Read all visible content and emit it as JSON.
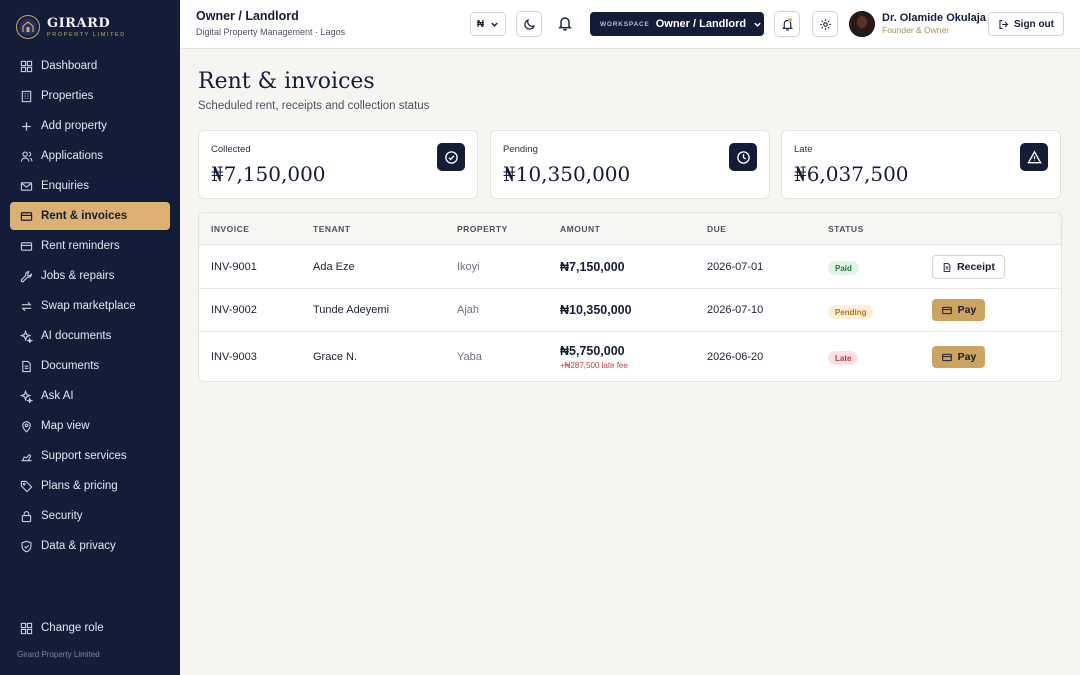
{
  "brand": {
    "name": "GIRARD",
    "tagline": "PROPERTY LIMITED"
  },
  "sidebar": {
    "items": [
      {
        "label": "Dashboard",
        "icon": "grid-icon"
      },
      {
        "label": "Properties",
        "icon": "building-icon"
      },
      {
        "label": "Add property",
        "icon": "plus-icon"
      },
      {
        "label": "Applications",
        "icon": "users-icon"
      },
      {
        "label": "Enquiries",
        "icon": "mail-icon"
      },
      {
        "label": "Rent & invoices",
        "icon": "card-icon",
        "active": true
      },
      {
        "label": "Rent reminders",
        "icon": "card-icon"
      },
      {
        "label": "Jobs & repairs",
        "icon": "wrench-icon"
      },
      {
        "label": "Swap marketplace",
        "icon": "swap-icon"
      },
      {
        "label": "AI documents",
        "icon": "sparkle-icon"
      },
      {
        "label": "Documents",
        "icon": "document-icon"
      },
      {
        "label": "Ask AI",
        "icon": "sparkle-icon"
      },
      {
        "label": "Map view",
        "icon": "map-pin-icon"
      },
      {
        "label": "Support services",
        "icon": "hand-icon"
      },
      {
        "label": "Plans & pricing",
        "icon": "tag-icon"
      },
      {
        "label": "Security",
        "icon": "lock-icon"
      },
      {
        "label": "Data & privacy",
        "icon": "shield-icon"
      }
    ],
    "change_role": "Change role",
    "footer": "Girard Property Limited"
  },
  "topbar": {
    "title": "Owner / Landlord",
    "subtitle": "Digital Property Management · Lagos",
    "currency": "₦",
    "workspace_label": "WORKSPACE",
    "workspace_value": "Owner / Landlord",
    "user_name": "Dr. Olamide Okulaja",
    "user_role": "Founder & Owner",
    "signout": "Sign out"
  },
  "page": {
    "title": "Rent & invoices",
    "subtitle": "Scheduled rent, receipts and collection status"
  },
  "summary": [
    {
      "label": "Collected",
      "value": "₦7,150,000",
      "icon": "check-circle-icon"
    },
    {
      "label": "Pending",
      "value": "₦10,350,000",
      "icon": "clock-icon"
    },
    {
      "label": "Late",
      "value": "₦6,037,500",
      "icon": "warning-icon"
    }
  ],
  "table": {
    "headers": [
      "INVOICE",
      "TENANT",
      "PROPERTY",
      "AMOUNT",
      "DUE",
      "STATUS"
    ],
    "rows": [
      {
        "invoice": "INV-9001",
        "tenant": "Ada Eze",
        "property": "Ikoyi",
        "amount": "₦7,150,000",
        "late_fee": "",
        "due": "2026-07-01",
        "status": "Paid",
        "action": "Receipt"
      },
      {
        "invoice": "INV-9002",
        "tenant": "Tunde Adeyemi",
        "property": "Ajah",
        "amount": "₦10,350,000",
        "late_fee": "",
        "due": "2026-07-10",
        "status": "Pending",
        "action": "Pay"
      },
      {
        "invoice": "INV-9003",
        "tenant": "Grace N.",
        "property": "Yaba",
        "amount": "₦5,750,000",
        "late_fee": "+₦287,500 late fee",
        "due": "2026-06-20",
        "status": "Late",
        "action": "Pay"
      }
    ]
  },
  "colors": {
    "navy": "#141d38",
    "gold": "#dcb273",
    "paid": "#1f7a3c",
    "pending": "#b3741b",
    "late": "#c23838"
  }
}
